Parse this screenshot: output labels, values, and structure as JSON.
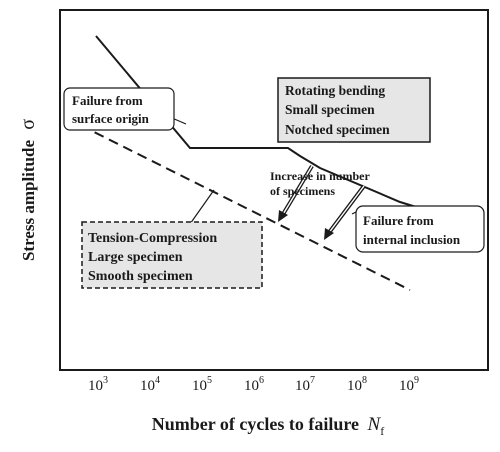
{
  "axes": {
    "ylabel": "Stress amplitude",
    "ylabel_symbol": "σ",
    "xlabel": "Number of cycles to failure",
    "xlabel_symbol": "N",
    "xlabel_subscript": "f",
    "xticks": [
      {
        "base": "10",
        "exp": "3"
      },
      {
        "base": "10",
        "exp": "4"
      },
      {
        "base": "10",
        "exp": "5"
      },
      {
        "base": "10",
        "exp": "6"
      },
      {
        "base": "10",
        "exp": "7"
      },
      {
        "base": "10",
        "exp": "8"
      },
      {
        "base": "10",
        "exp": "9"
      }
    ]
  },
  "annotations": {
    "surface": [
      "Failure from",
      "surface origin"
    ],
    "rotating": [
      "Rotating bending",
      "Small specimen",
      "Notched specimen"
    ],
    "increase": [
      "Increase in number",
      "of specimens"
    ],
    "internal": [
      "Failure from",
      "internal inclusion"
    ],
    "tension": [
      "Tension-Compression",
      "Large specimen",
      "Smooth specimen"
    ]
  },
  "colors": {
    "ink": "#1a1a1a",
    "box_fill": "#e6e6e6"
  }
}
